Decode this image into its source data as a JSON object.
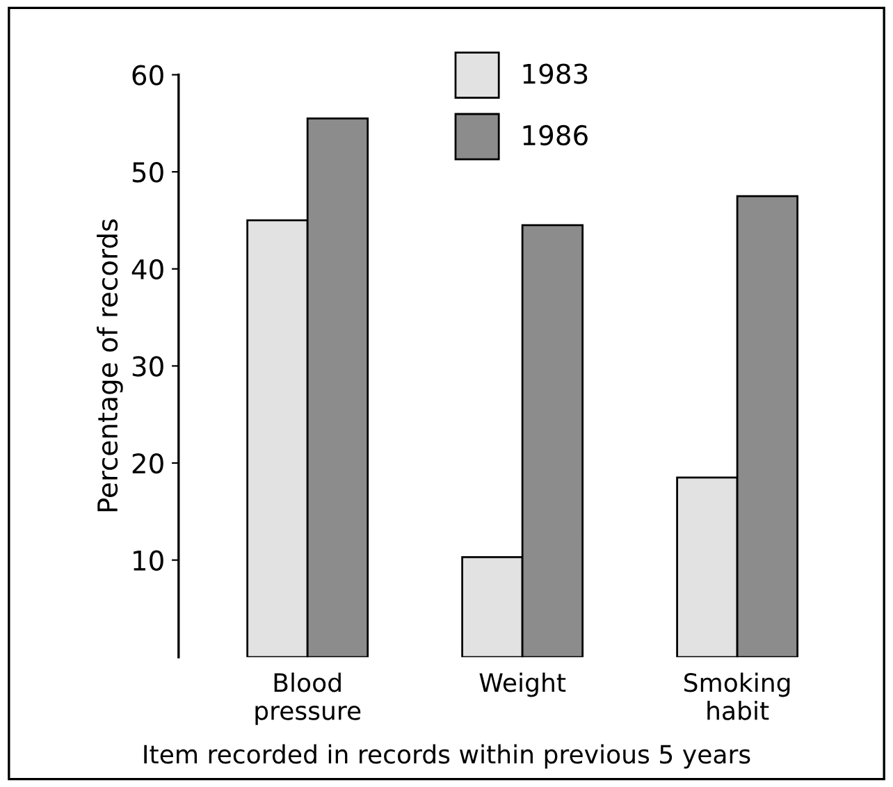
{
  "chart_data": {
    "type": "bar",
    "categories": [
      "Blood\npressure",
      "Weight",
      "Smoking\nhabit"
    ],
    "series": [
      {
        "name": "1983",
        "color": "#e2e2e2",
        "values": [
          45,
          10.3,
          18.5
        ]
      },
      {
        "name": "1986",
        "color": "#8c8c8c",
        "values": [
          55.5,
          44.5,
          47.5
        ]
      }
    ],
    "ylabel": "Percentage of records",
    "xlabel": "Item recorded in records within previous 5 years",
    "ylim": [
      0,
      60
    ],
    "yticks": [
      10,
      20,
      30,
      40,
      50,
      60
    ],
    "legend": "top",
    "grid": false
  }
}
